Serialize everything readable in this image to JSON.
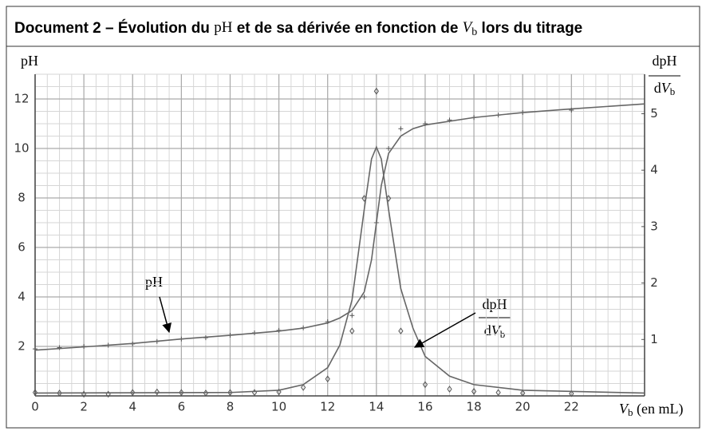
{
  "chart_data": {
    "type": "line",
    "title": [
      "Document 2 – Évolution du ",
      "pH",
      " et de sa dérivée en fonction de ",
      "V",
      "b",
      " lors du titrage"
    ],
    "y_label": "pH",
    "y2_label": {
      "numerator": "dpH",
      "denominator": [
        "d",
        "V",
        "b"
      ]
    },
    "x_label": [
      "V",
      "b",
      " (en mL)"
    ],
    "annotations": [
      {
        "text": "pH"
      },
      {
        "numerator": "dpH",
        "denominator": [
          "d",
          "V",
          "b"
        ]
      }
    ],
    "xlim": [
      0,
      25
    ],
    "xticks": [
      0,
      2,
      4,
      6,
      8,
      10,
      12,
      14,
      16,
      18,
      20,
      22
    ],
    "ylim": [
      0,
      13
    ],
    "yticks": [
      2,
      4,
      6,
      8,
      10,
      12
    ],
    "y2lim": [
      0,
      5.7
    ],
    "y2ticks": [
      1,
      2,
      3,
      4,
      5
    ],
    "grid": true,
    "series": [
      {
        "name": "pH",
        "color": "#555",
        "marker": "cross",
        "x": [
          0,
          1,
          2,
          3,
          4,
          5,
          6,
          7,
          8,
          9,
          10,
          11,
          12,
          13,
          13.5,
          14,
          14.5,
          15,
          16,
          17,
          18,
          19,
          20,
          22
        ],
        "values": [
          1.9,
          1.95,
          2.0,
          2.05,
          2.1,
          2.2,
          2.3,
          2.35,
          2.45,
          2.55,
          2.65,
          2.75,
          3.0,
          3.25,
          4.0,
          7.0,
          10.0,
          10.8,
          11.0,
          11.15,
          11.25,
          11.35,
          11.45,
          11.55
        ]
      },
      {
        "name": "pH",
        "color": "#666",
        "marker": "none",
        "x": [
          0,
          2,
          4,
          6,
          8,
          10,
          11,
          12,
          12.5,
          13,
          13.5,
          13.8,
          14,
          14.2,
          14.5,
          15,
          15.5,
          16,
          18,
          20,
          22,
          25
        ],
        "values": [
          1.85,
          1.98,
          2.12,
          2.3,
          2.45,
          2.62,
          2.74,
          2.95,
          3.15,
          3.45,
          4.2,
          5.5,
          7,
          8.5,
          9.8,
          10.5,
          10.8,
          10.95,
          11.25,
          11.45,
          11.6,
          11.8
        ]
      },
      {
        "name": "dpH/dVb",
        "color": "#555",
        "marker": "diamond",
        "axis": "y2",
        "x": [
          0,
          1,
          2,
          3,
          4,
          5,
          6,
          7,
          8,
          9,
          10,
          11,
          12,
          13,
          13.5,
          14,
          14.5,
          15,
          16,
          17,
          18,
          19,
          20,
          22
        ],
        "values": [
          0.06,
          0.05,
          0.03,
          0.03,
          0.06,
          0.07,
          0.06,
          0.05,
          0.06,
          0.06,
          0.07,
          0.15,
          0.3,
          1.15,
          3.5,
          5.4,
          3.5,
          1.15,
          0.2,
          0.12,
          0.08,
          0.06,
          0.05,
          0.04
        ]
      },
      {
        "name": "dpH/dVb",
        "color": "#666",
        "marker": "none",
        "axis": "y2",
        "x": [
          0,
          8,
          10,
          11,
          12,
          12.5,
          13,
          13.5,
          13.8,
          14,
          14.2,
          14.5,
          15,
          15.5,
          16,
          17,
          18,
          20,
          25
        ],
        "values": [
          0.05,
          0.06,
          0.1,
          0.2,
          0.5,
          0.9,
          1.7,
          3.3,
          4.2,
          4.41,
          4.2,
          3.3,
          1.9,
          1.2,
          0.7,
          0.35,
          0.2,
          0.1,
          0.05
        ]
      }
    ]
  }
}
